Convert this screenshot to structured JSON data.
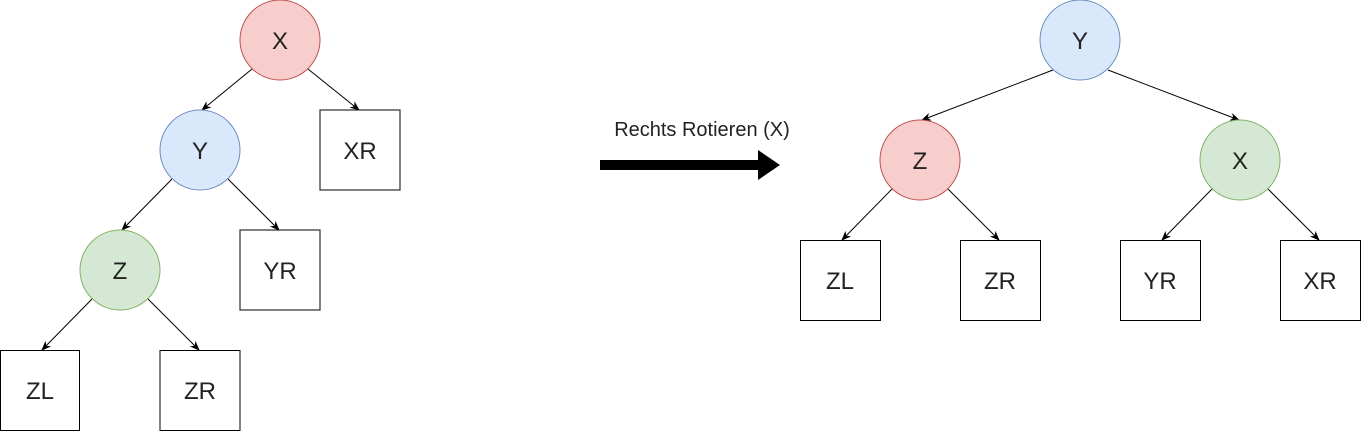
{
  "caption": "Rechts Rotieren (X)",
  "colors": {
    "x_fill": "#f8cecc",
    "x_stroke": "#b85450",
    "y_fill": "#dae8fc",
    "y_stroke": "#6c8ebf",
    "z_fill": "#d5e8d4",
    "z_stroke": "#82b366",
    "z_after_fill": "#f8cecc",
    "z_after_stroke": "#b85450",
    "x_after_fill": "#d5e8d4",
    "x_after_stroke": "#82b366",
    "box_stroke": "#000000",
    "arrow": "#000000"
  },
  "before": {
    "nodes": {
      "x": "X",
      "y": "Y",
      "z": "Z",
      "xr": "XR",
      "yr": "YR",
      "zl": "ZL",
      "zr": "ZR"
    }
  },
  "after": {
    "nodes": {
      "y": "Y",
      "z": "Z",
      "x": "X",
      "zl": "ZL",
      "zr": "ZR",
      "yr": "YR",
      "xr": "XR"
    }
  }
}
